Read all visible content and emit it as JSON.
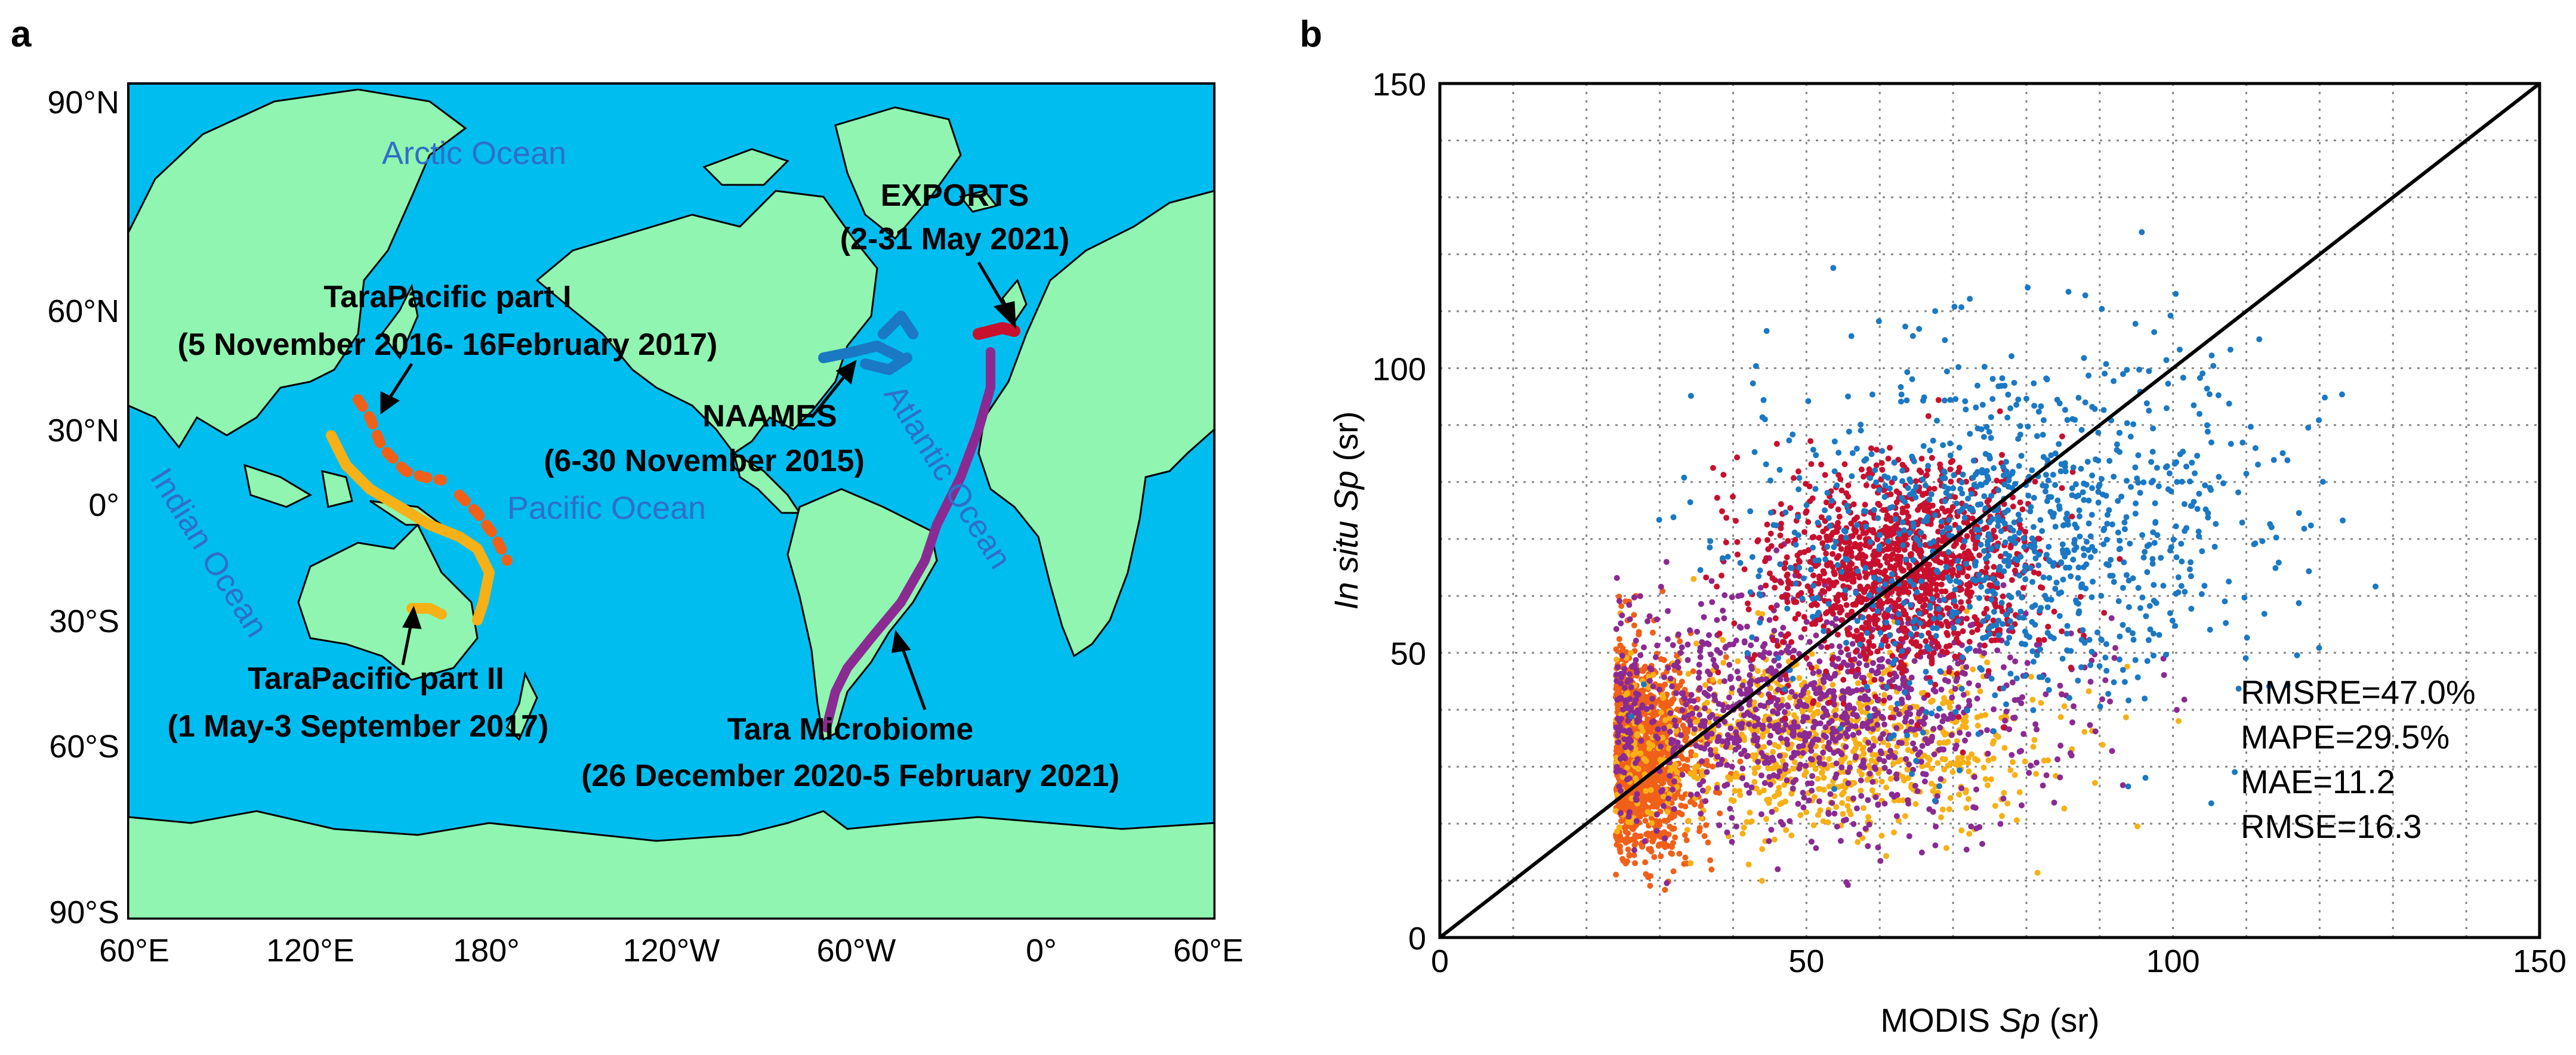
{
  "panel_a": {
    "label": "a",
    "y_ticks": [
      "90°N",
      "60°N",
      "30°N",
      "0°",
      "30°S",
      "60°S",
      "90°S"
    ],
    "x_ticks": [
      "60°E",
      "120°E",
      "180°",
      "120°W",
      "60°W",
      "0°",
      "60°E"
    ],
    "oceans": {
      "arctic": "Arctic Ocean",
      "pacific": "Pacific Ocean",
      "atlantic": "Atlantic Ocean",
      "indian": "Indian Ocean"
    },
    "annotations": {
      "exports_name": "EXPORTS",
      "exports_date": "(2-31 May 2021)",
      "tara1_name": "TaraPacific part I",
      "tara1_date": "(5 November 2016- 16February 2017)",
      "naames_name": "NAAMES",
      "naames_date": "(6-30 November 2015)",
      "tara2_name": "TaraPacific part II",
      "tara2_date": "(1 May-3 September 2017)",
      "microbiome_name": "Tara Microbiome",
      "microbiome_date": "(26 December 2020-5 February 2021)"
    },
    "colors": {
      "ocean": "#00bdf0",
      "land": "#8ff5b0",
      "tara1": "#f06018",
      "tara2": "#f7b015",
      "naames": "#1a78c4",
      "exports": "#c8102e",
      "microbiome": "#8b2a92"
    }
  },
  "chart_data": {
    "type": "scatter",
    "label": "b",
    "xlabel_prefix": "MODIS ",
    "xlabel_var": "Sp",
    "xlabel_suffix": " (sr)",
    "ylabel_italic": "In situ Sp",
    "ylabel_suffix": " (sr)",
    "xlim": [
      0,
      150
    ],
    "ylim": [
      0,
      150
    ],
    "x_ticks": [
      0,
      50,
      100,
      150
    ],
    "y_ticks": [
      0,
      50,
      100,
      150
    ],
    "grid": true,
    "one_to_one_line": true,
    "stats": [
      "RMSRE=47.0%",
      "MAPE=29.5%",
      "MAE=11.2",
      "RMSE=16.3"
    ],
    "series": [
      {
        "name": "TaraPacific part I",
        "color": "#f06018",
        "cx": 27,
        "cy": 32,
        "sx": 4,
        "sy": 9,
        "n": 1400
      },
      {
        "name": "TaraPacific part II",
        "color": "#f7b015",
        "cx": 52,
        "cy": 34,
        "sx": 15,
        "sy": 8,
        "n": 900
      },
      {
        "name": "Tara Microbiome",
        "color": "#8b2a92",
        "cx": 50,
        "cy": 40,
        "sx": 17,
        "sy": 10,
        "n": 1100
      },
      {
        "name": "EXPORTS",
        "color": "#c8102e",
        "cx": 63,
        "cy": 65,
        "sx": 9,
        "sy": 9,
        "n": 1300
      },
      {
        "name": "NAAMES",
        "color": "#1a78c4",
        "cx": 78,
        "cy": 72,
        "sx": 18,
        "sy": 15,
        "n": 1000
      }
    ]
  }
}
